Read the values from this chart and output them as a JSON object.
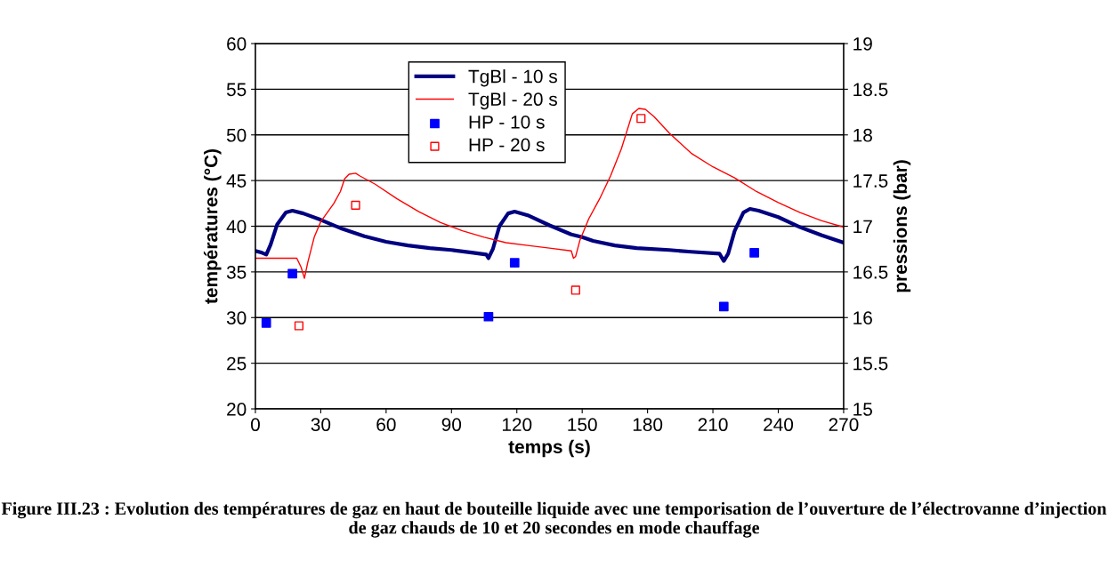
{
  "chart_data": {
    "type": "line",
    "xlabel": "temps (s)",
    "ylabel": "températures (°C)",
    "y2label": "pressions (bar)",
    "xlim": [
      0,
      270
    ],
    "xticks": [
      0,
      30,
      60,
      90,
      120,
      150,
      180,
      210,
      240,
      270
    ],
    "ylim": [
      20,
      60
    ],
    "yticks": [
      20,
      25,
      30,
      35,
      40,
      45,
      50,
      55,
      60
    ],
    "y2lim": [
      15,
      19
    ],
    "y2ticks": [
      15,
      15.5,
      16,
      16.5,
      17,
      17.5,
      18,
      18.5,
      19
    ],
    "grid": "y",
    "legend": "top",
    "series": [
      {
        "name": "TgBl - 10 s",
        "color": "#000080",
        "x": [
          0,
          3,
          5,
          7,
          10,
          14,
          17,
          22,
          30,
          40,
          50,
          60,
          70,
          80,
          90,
          100,
          106,
          107,
          109,
          112,
          116,
          119,
          125,
          135,
          145,
          150,
          155,
          165,
          175,
          190,
          200,
          213,
          215,
          217,
          220,
          224,
          227,
          231,
          240,
          250,
          260,
          270
        ],
        "values": [
          37.3,
          37.1,
          36.9,
          38,
          40.2,
          41.5,
          41.7,
          41.4,
          40.7,
          39.7,
          38.9,
          38.3,
          37.9,
          37.6,
          37.4,
          37.1,
          36.9,
          36.5,
          37.5,
          40,
          41.4,
          41.6,
          41.2,
          40.1,
          39.1,
          38.8,
          38.4,
          37.9,
          37.6,
          37.4,
          37.2,
          37,
          36.2,
          37,
          39.5,
          41.5,
          41.9,
          41.7,
          41,
          39.9,
          39,
          38.2
        ]
      },
      {
        "name": "TgBl - 20 s",
        "color": "#ff0000",
        "x": [
          0,
          10,
          19,
          21,
          22.5,
          24,
          27,
          30,
          33,
          36,
          39,
          41,
          43,
          46,
          48,
          55,
          65,
          75,
          85,
          95,
          105,
          115,
          125,
          135,
          145,
          146,
          147,
          149,
          153,
          158,
          163,
          168,
          173,
          176,
          179,
          183,
          190,
          200,
          210,
          220,
          230,
          240,
          250,
          260,
          270
        ],
        "values": [
          36.5,
          36.5,
          36.5,
          35.5,
          34.3,
          36,
          38.8,
          40.5,
          41.5,
          42.5,
          43.8,
          45.2,
          45.7,
          45.8,
          45.5,
          44.6,
          43,
          41.6,
          40.4,
          39.5,
          38.8,
          38.2,
          37.9,
          37.6,
          37.3,
          36.5,
          36.7,
          38.5,
          40.8,
          43,
          45.5,
          48.5,
          52.3,
          52.9,
          52.8,
          52,
          50.2,
          48,
          46.5,
          45.3,
          43.8,
          42.6,
          41.5,
          40.6,
          39.9
        ]
      },
      {
        "name": "HP - 10 s",
        "type": "scatter",
        "axis": "y2",
        "marker": "square",
        "color": "#0000ff",
        "x": [
          5,
          17,
          107,
          119,
          215,
          229
        ],
        "values": [
          15.94,
          16.48,
          16.01,
          16.6,
          16.12,
          16.71
        ]
      },
      {
        "name": "HP - 20 s",
        "type": "scatter",
        "axis": "y2",
        "marker": "square-open",
        "color": "#ff0000",
        "x": [
          20,
          46,
          147,
          177
        ],
        "values": [
          15.91,
          17.23,
          16.3,
          18.18
        ]
      }
    ],
    "annotations": [
      "Figure III.23 : Evolution des températures de gaz en haut de bouteille liquide avec une temporisation de l’ouverture de l’électrovanne d’injection de gaz chauds de 10 et 20 secondes en mode chauffage"
    ]
  }
}
